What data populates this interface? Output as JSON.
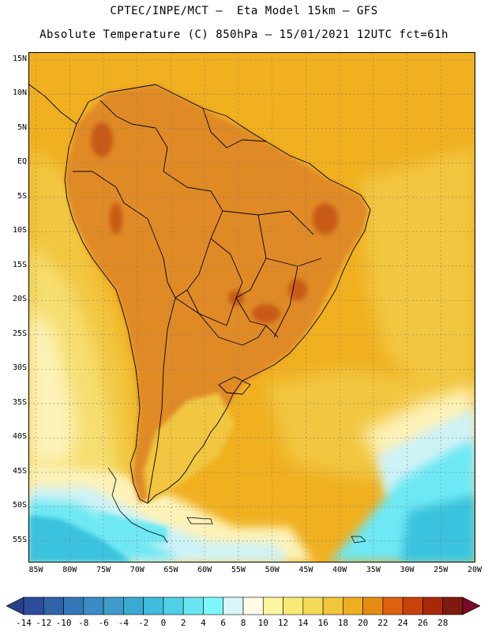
{
  "header": {
    "title_line1": "CPTEC/INPE/MCT —  Eta Model 15km — GFS",
    "title_line2": "Absolute Temperature (C) 850hPa — 15/01/2021 12UTC fct=61h"
  },
  "map": {
    "field": "Absolute Temperature 850hPa",
    "units": "C",
    "lat_labels": [
      "15N",
      "10N",
      "5N",
      "EQ",
      "5S",
      "10S",
      "15S",
      "20S",
      "25S",
      "30S",
      "35S",
      "40S",
      "45S",
      "50S",
      "55S"
    ],
    "lon_labels": [
      "85W",
      "80W",
      "75W",
      "70W",
      "65W",
      "60W",
      "55W",
      "50W",
      "45W",
      "40W",
      "35W",
      "30W",
      "25W",
      "20W"
    ],
    "lat_range": [
      16,
      -58
    ],
    "lon_range": [
      -86,
      -20
    ],
    "colors": {
      "ocean_warm": "#f0b020",
      "land_hot": "#e08a28",
      "land_very_hot": "#c85a18",
      "ocean_mild": "#f2c640",
      "cool_yellow": "#f6de70",
      "cream": "#fdf2b8",
      "pale_blue": "#cdf2f6",
      "cyan": "#6ee8f4",
      "deep_cyan": "#3ac2de",
      "blue": "#2c9ad0",
      "border": "#000000"
    }
  },
  "colorbar": {
    "labels": [
      "-14",
      "-12",
      "-10",
      "-8",
      "-6",
      "-4",
      "-2",
      "0",
      "2",
      "4",
      "6",
      "8",
      "10",
      "12",
      "14",
      "16",
      "18",
      "20",
      "22",
      "24",
      "26",
      "28"
    ],
    "colors": [
      "#2a4d9c",
      "#2f64aa",
      "#3278b8",
      "#3b8cc4",
      "#3e9cca",
      "#3aaad2",
      "#40bcdc",
      "#50d0e6",
      "#6ae6f2",
      "#7ef8fc",
      "#d8f6fa",
      "#fffbe8",
      "#fdf5a0",
      "#f9ea78",
      "#f4db58",
      "#f0c63c",
      "#eeb020",
      "#e68c14",
      "#dc6210",
      "#c8420c",
      "#a8280a",
      "#7e1a0e"
    ],
    "left_arrow_color": "#2a3f8c",
    "right_arrow_color": "#7a0a2a"
  }
}
